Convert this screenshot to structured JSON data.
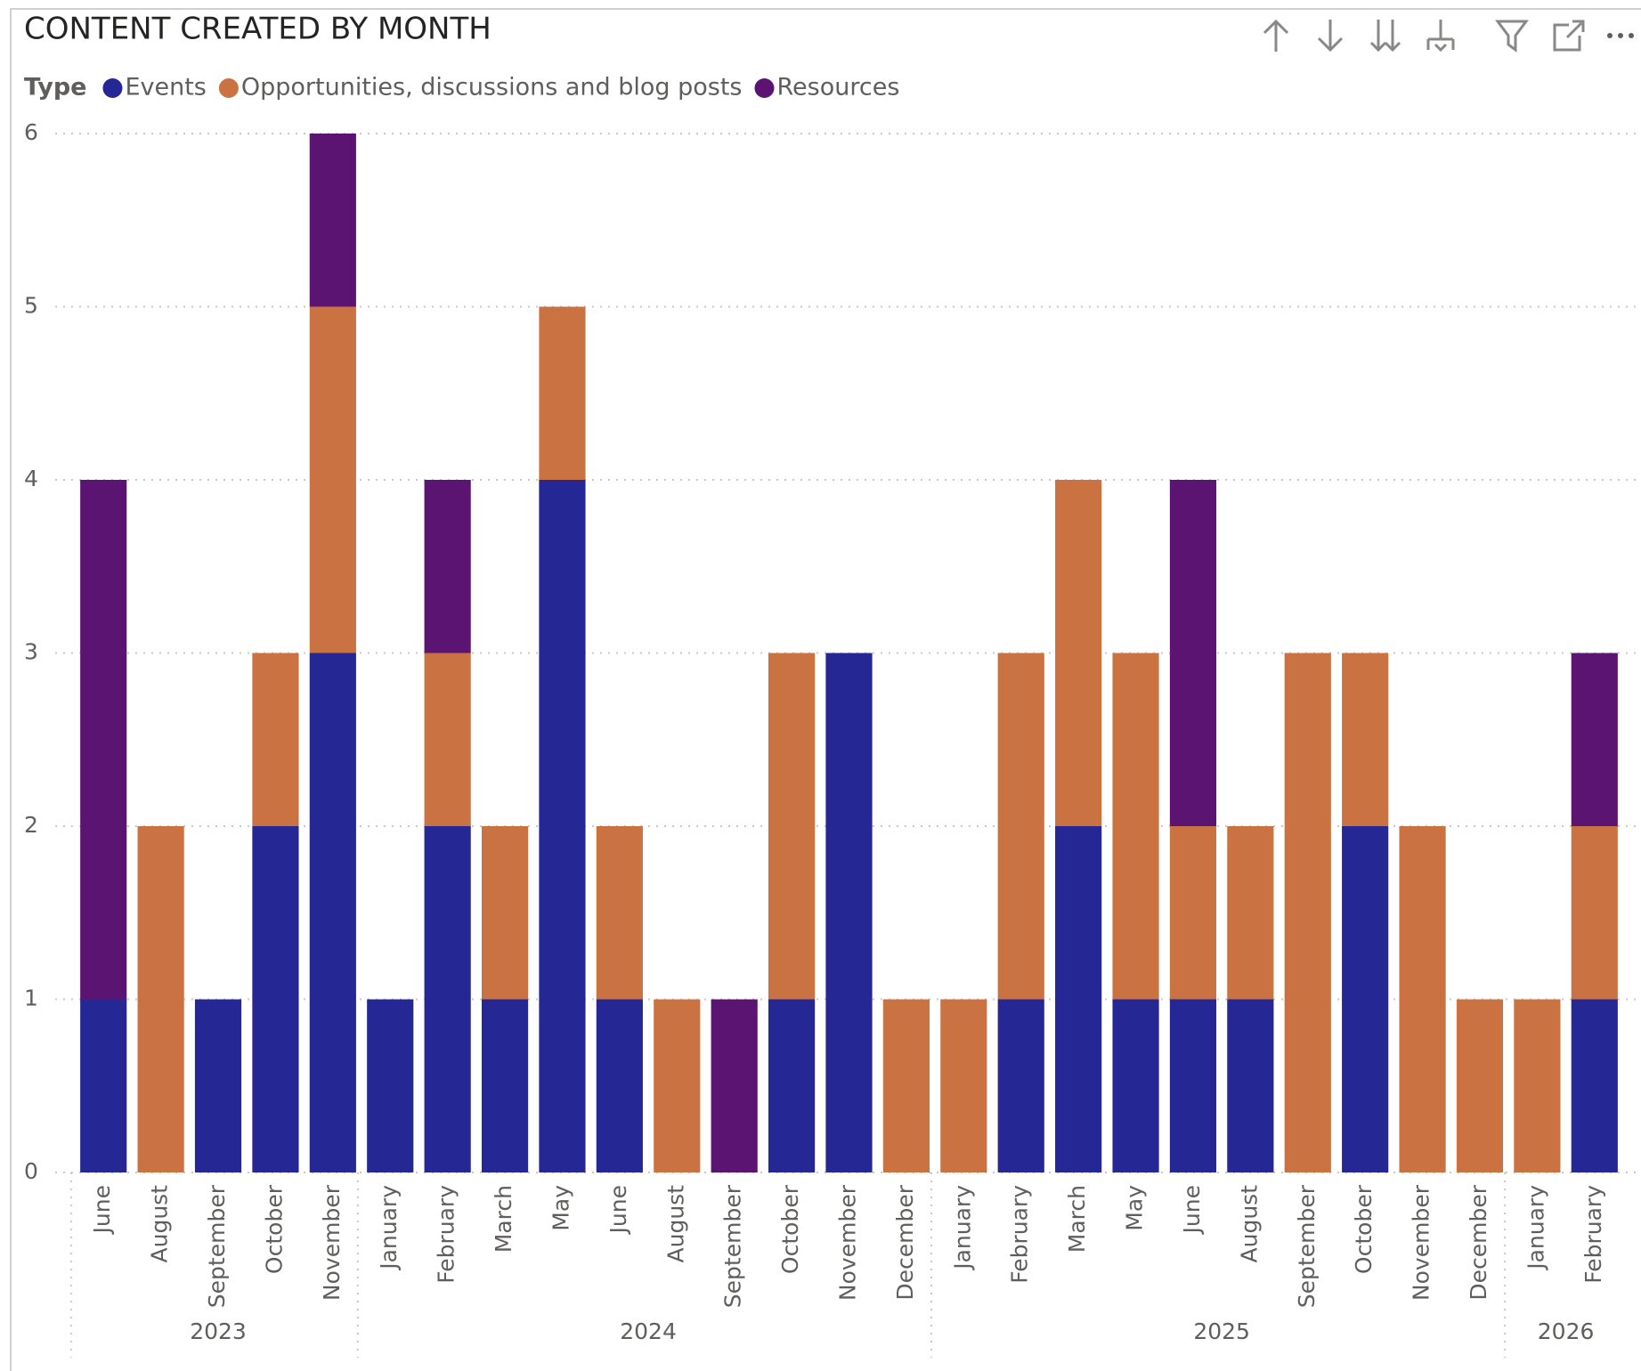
{
  "chart_data": {
    "type": "stacked-bar",
    "title": "CONTENT CREATED BY MONTH",
    "legend_title": "Type",
    "categories": [
      "June",
      "August",
      "September",
      "October",
      "November",
      "January",
      "February",
      "March",
      "May",
      "June",
      "August",
      "September",
      "October",
      "November",
      "December",
      "January",
      "February",
      "March",
      "May",
      "June",
      "August",
      "September",
      "October",
      "November",
      "December",
      "January",
      "February"
    ],
    "years": [
      "2023",
      "2023",
      "2023",
      "2023",
      "2023",
      "2024",
      "2024",
      "2024",
      "2024",
      "2024",
      "2024",
      "2024",
      "2024",
      "2024",
      "2024",
      "2025",
      "2025",
      "2025",
      "2025",
      "2025",
      "2025",
      "2025",
      "2025",
      "2025",
      "2025",
      "2026",
      "2026"
    ],
    "series": [
      {
        "name": "Events",
        "color": "#252795",
        "values": [
          1,
          0,
          1,
          2,
          3,
          1,
          2,
          1,
          4,
          1,
          0,
          0,
          1,
          3,
          0,
          0,
          1,
          2,
          1,
          1,
          1,
          0,
          2,
          0,
          0,
          0,
          1
        ]
      },
      {
        "name": "Opportunities, discussions and blog posts",
        "color": "#cb7243",
        "values": [
          0,
          2,
          0,
          1,
          2,
          0,
          1,
          1,
          1,
          1,
          1,
          0,
          2,
          0,
          1,
          1,
          2,
          2,
          2,
          1,
          1,
          3,
          1,
          2,
          1,
          1,
          1
        ]
      },
      {
        "name": "Resources",
        "color": "#5c1472",
        "values": [
          3,
          0,
          0,
          0,
          1,
          0,
          1,
          0,
          0,
          0,
          0,
          1,
          0,
          0,
          0,
          0,
          0,
          0,
          0,
          2,
          0,
          0,
          0,
          0,
          0,
          0,
          1
        ]
      }
    ],
    "ylim": [
      0,
      6
    ],
    "yticks": [
      0,
      1,
      2,
      3,
      4,
      5,
      6
    ],
    "grid": true
  }
}
